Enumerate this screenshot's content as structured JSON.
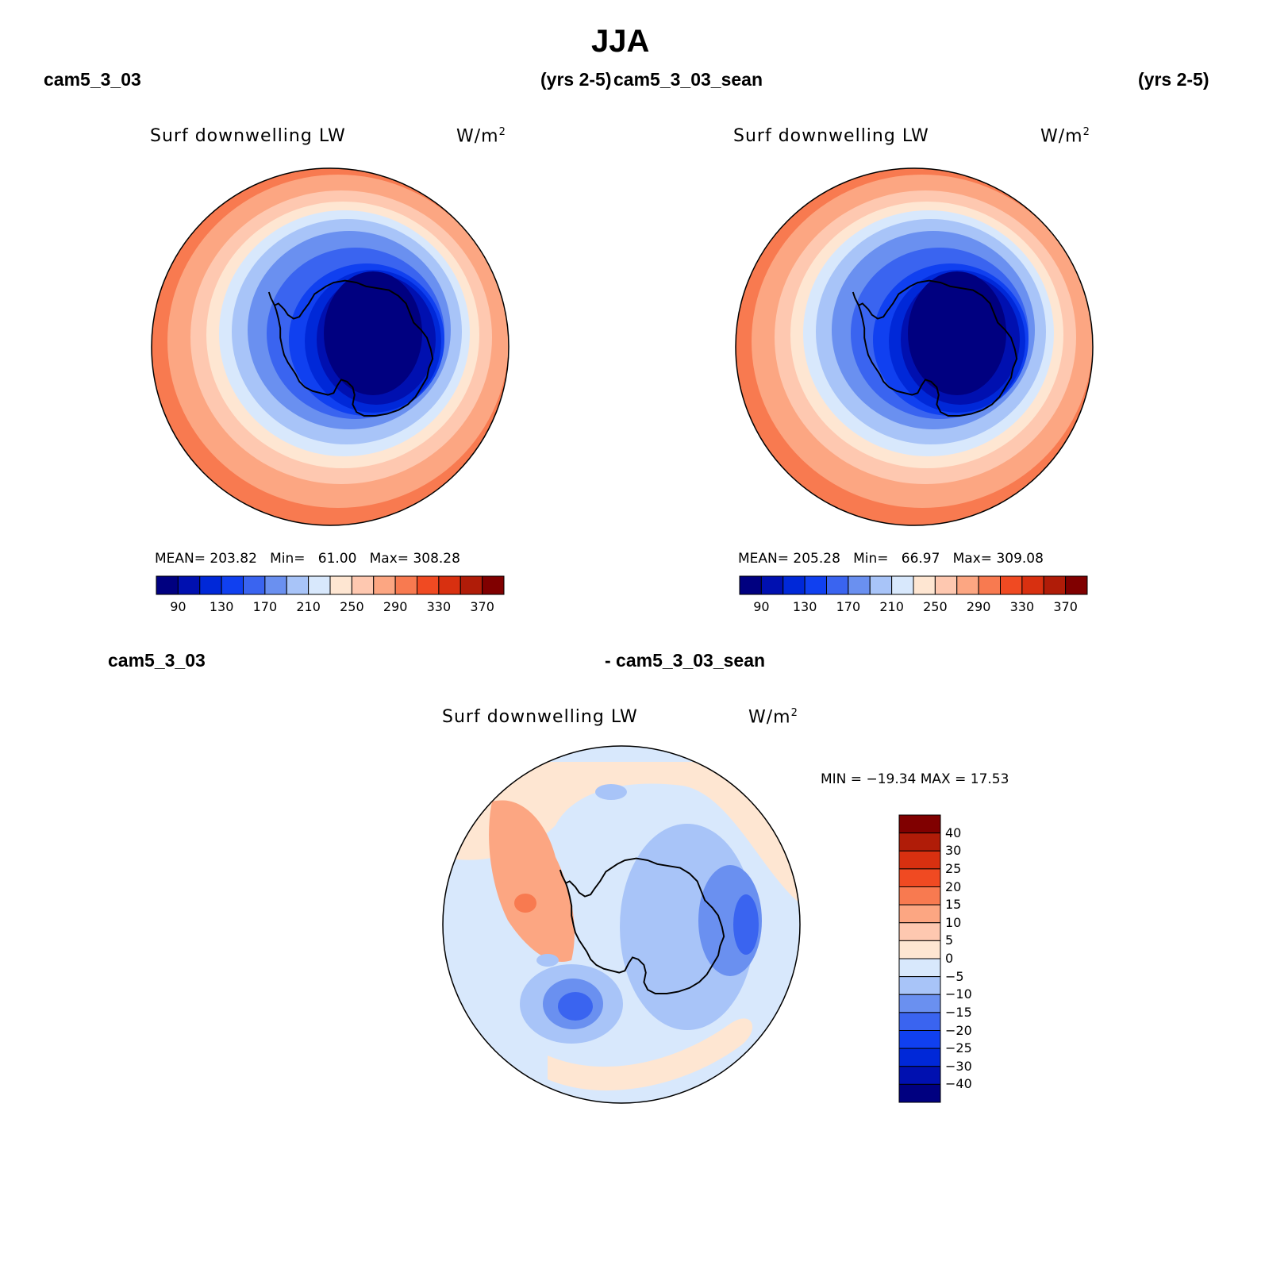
{
  "figure": {
    "title": "JJA",
    "top_left": {
      "case_name": "cam5_3_03",
      "years": "(yrs 2-5)",
      "panel_title": "Surf downwelling LW",
      "units": "W/m",
      "units_sup": "2",
      "stats": {
        "mean_label": "MEAN=",
        "mean": "203.82",
        "min_label": "Min=",
        "min": "61.00",
        "max_label": "Max=",
        "max": "308.28"
      }
    },
    "top_right": {
      "case_name": "cam5_3_03_sean",
      "years": "(yrs 2-5)",
      "panel_title": "Surf downwelling LW",
      "units": "W/m",
      "units_sup": "2",
      "stats": {
        "mean_label": "MEAN=",
        "mean": "205.28",
        "min_label": "Min=",
        "min": "66.97",
        "max_label": "Max=",
        "max": "309.08"
      }
    },
    "bottom": {
      "case_a": "cam5_3_03",
      "case_b": "- cam5_3_03_sean",
      "panel_title": "Surf downwelling LW",
      "units": "W/m",
      "units_sup": "2",
      "minmax": "MIN = −19.34  MAX =   17.53"
    },
    "abs_colorbar": {
      "colors": [
        "#000080",
        "#0010b0",
        "#0028d8",
        "#1040f0",
        "#3a64f0",
        "#6a90f0",
        "#a8c4f8",
        "#d8e8fc",
        "#fee6d2",
        "#fec8b0",
        "#fca682",
        "#f87a50",
        "#f04a22",
        "#d83010",
        "#b01c08",
        "#800000"
      ],
      "labels": [
        "90",
        "130",
        "170",
        "210",
        "250",
        "290",
        "330",
        "370"
      ]
    },
    "diff_colorbar": {
      "colors": [
        "#000080",
        "#0010b0",
        "#0028d8",
        "#1040f0",
        "#3a64f0",
        "#6a90f0",
        "#a8c4f8",
        "#d8e8fc",
        "#fee6d2",
        "#fec8b0",
        "#fca682",
        "#f87a50",
        "#f04a22",
        "#d83010",
        "#b01c08",
        "#800000"
      ],
      "labels": [
        "40",
        "30",
        "25",
        "20",
        "15",
        "10",
        "5",
        "0",
        "−5",
        "−10",
        "−15",
        "−20",
        "−25",
        "−30",
        "−40"
      ]
    }
  }
}
